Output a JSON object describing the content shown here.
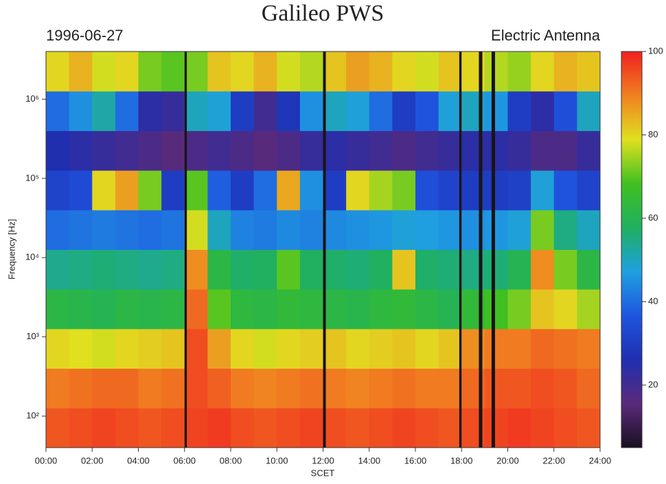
{
  "chart_data": {
    "type": "heatmap",
    "title": "Galileo PWS",
    "date": "1996-06-27",
    "subtitle": "Electric Antenna",
    "xlabel": "SCET",
    "ylabel": "Frequency [Hz]",
    "x": [
      0,
      1,
      2,
      3,
      4,
      5,
      6,
      7,
      8,
      9,
      10,
      11,
      12,
      13,
      14,
      15,
      16,
      17,
      18,
      19,
      20,
      21,
      22,
      23,
      24
    ],
    "y_bins": [
      40,
      126.5,
      400,
      1265,
      4000,
      12649,
      40000,
      126491,
      400000,
      1264911,
      4000000
    ],
    "z": [
      [
        94,
        95,
        96,
        95,
        94,
        95,
        96,
        97,
        95,
        94,
        95,
        96,
        95,
        94,
        95,
        96,
        95,
        94,
        95,
        96,
        97,
        96,
        95,
        94
      ],
      [
        90,
        91,
        92,
        92,
        90,
        91,
        95,
        93,
        90,
        89,
        90,
        91,
        90,
        89,
        90,
        91,
        90,
        90,
        92,
        94,
        94,
        95,
        94,
        92
      ],
      [
        80,
        79,
        78,
        80,
        81,
        82,
        95,
        86,
        80,
        78,
        80,
        81,
        82,
        80,
        81,
        82,
        80,
        82,
        88,
        90,
        90,
        92,
        91,
        90
      ],
      [
        62,
        61,
        60,
        62,
        61,
        62,
        92,
        70,
        63,
        62,
        64,
        63,
        62,
        61,
        63,
        64,
        62,
        60,
        64,
        68,
        72,
        82,
        80,
        75
      ],
      [
        54,
        55,
        56,
        55,
        54,
        55,
        88,
        62,
        57,
        58,
        70,
        58,
        57,
        56,
        58,
        82,
        57,
        56,
        55,
        56,
        60,
        88,
        72,
        62
      ],
      [
        40,
        41,
        42,
        41,
        40,
        41,
        78,
        50,
        43,
        42,
        44,
        43,
        44,
        45,
        46,
        48,
        47,
        46,
        45,
        46,
        48,
        72,
        55,
        50
      ],
      [
        32,
        34,
        80,
        86,
        72,
        30,
        70,
        38,
        30,
        40,
        85,
        45,
        30,
        80,
        75,
        72,
        35,
        32,
        30,
        30,
        31,
        48,
        36,
        32
      ],
      [
        26,
        24,
        22,
        20,
        18,
        16,
        18,
        20,
        18,
        16,
        18,
        22,
        24,
        22,
        20,
        18,
        20,
        22,
        24,
        24,
        22,
        18,
        18,
        22
      ],
      [
        40,
        45,
        52,
        40,
        24,
        22,
        50,
        48,
        30,
        20,
        28,
        45,
        50,
        48,
        40,
        30,
        36,
        48,
        50,
        46,
        30,
        24,
        35,
        50
      ],
      [
        80,
        84,
        78,
        80,
        72,
        70,
        72,
        82,
        80,
        84,
        78,
        76,
        82,
        86,
        84,
        80,
        78,
        82,
        80,
        76,
        74,
        80,
        84,
        82
      ]
    ],
    "gaps": [
      [
        6.0,
        6.1
      ],
      [
        12.0,
        12.12
      ],
      [
        17.9,
        18.0
      ],
      [
        18.75,
        18.9
      ],
      [
        19.3,
        19.45
      ]
    ],
    "gap_color": "#1a1414",
    "xlim": [
      0,
      24
    ],
    "xticks": [
      {
        "value": 0,
        "label": "00:00"
      },
      {
        "value": 2,
        "label": "02:00"
      },
      {
        "value": 4,
        "label": "04:00"
      },
      {
        "value": 6,
        "label": "06:00"
      },
      {
        "value": 8,
        "label": "08:00"
      },
      {
        "value": 10,
        "label": "10:00"
      },
      {
        "value": 12,
        "label": "12:00"
      },
      {
        "value": 14,
        "label": "14:00"
      },
      {
        "value": 16,
        "label": "16:00"
      },
      {
        "value": 18,
        "label": "18:00"
      },
      {
        "value": 20,
        "label": "20:00"
      },
      {
        "value": 22,
        "label": "22:00"
      },
      {
        "value": 24,
        "label": "24:00"
      }
    ],
    "ylim": [
      40,
      4000000
    ],
    "log_y": true,
    "yticks": [
      {
        "value": 100,
        "label": "10²"
      },
      {
        "value": 1000,
        "label": "10³"
      },
      {
        "value": 10000,
        "label": "10⁴"
      },
      {
        "value": 100000,
        "label": "10⁵"
      },
      {
        "value": 1000000,
        "label": "10⁶"
      }
    ],
    "clim": [
      5,
      100
    ],
    "cticks": [
      20,
      40,
      60,
      80,
      100
    ],
    "colorscale": [
      "#1a1020",
      "#5a2a7a",
      "#1f2fb0",
      "#1f55e0",
      "#1fa0e0",
      "#1fb060",
      "#40c020",
      "#e0e020",
      "#f08020",
      "#f02020"
    ]
  }
}
